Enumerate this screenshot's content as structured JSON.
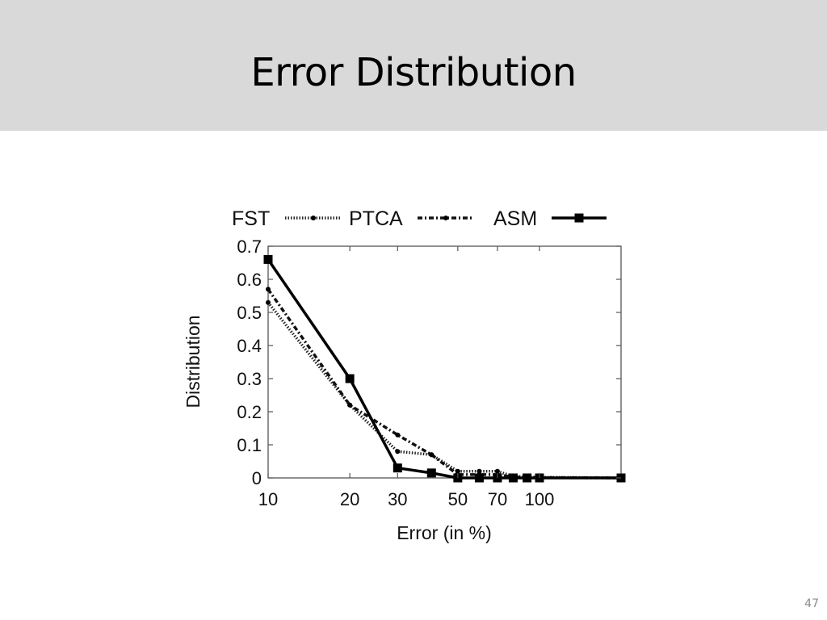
{
  "slide": {
    "title": "Error Distribution",
    "page_number": "47",
    "header_bg": "#d9d9d9"
  },
  "chart_data": {
    "type": "line",
    "title": "",
    "xlabel": "Error (in %)",
    "ylabel": "Distribution",
    "x_scale": "log",
    "x_ticks": [
      "10",
      "20",
      "30",
      "50",
      "70",
      "100"
    ],
    "y_ticks": [
      "0",
      "0.1",
      "0.2",
      "0.3",
      "0.4",
      "0.5",
      "0.6",
      "0.7"
    ],
    "ylim": [
      0,
      0.7
    ],
    "legend_position": "top",
    "x": [
      10,
      20,
      30,
      40,
      50,
      60,
      70,
      80,
      90,
      100,
      200
    ],
    "series": [
      {
        "name": "FST",
        "style": "dotted",
        "marker": "small-circle",
        "values": [
          0.53,
          0.22,
          0.08,
          0.07,
          0.02,
          0.02,
          0.02,
          0.005,
          0.003,
          0.002,
          0.0
        ]
      },
      {
        "name": "PTCA",
        "style": "dash-dot",
        "marker": "small-circle",
        "values": [
          0.57,
          0.22,
          0.13,
          0.07,
          0.01,
          0.01,
          0.01,
          0.003,
          0.002,
          0.001,
          0.0
        ]
      },
      {
        "name": "ASM",
        "style": "solid",
        "marker": "square",
        "values": [
          0.66,
          0.3,
          0.03,
          0.015,
          0.0,
          0.0,
          0.0,
          0.0,
          0.0,
          0.0,
          0.0
        ]
      }
    ]
  }
}
